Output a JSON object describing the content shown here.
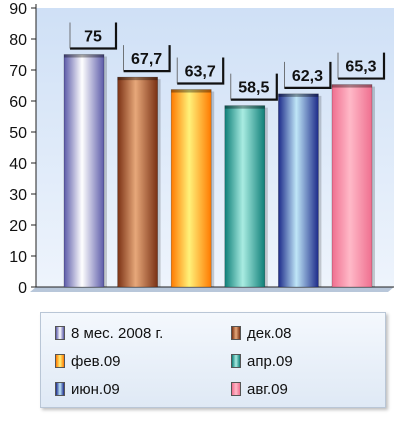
{
  "chart_data": {
    "type": "bar",
    "categories": [
      "8 мес. 2008 г.",
      "дек.08",
      "фев.09",
      "апр.09",
      "июн.09",
      "авг.09"
    ],
    "values": [
      75,
      67.7,
      63.7,
      58.5,
      62.3,
      65.3
    ],
    "data_labels": [
      "75",
      "67,7",
      "63,7",
      "58,5",
      "62,3",
      "65,3"
    ],
    "ylim": [
      0,
      90
    ],
    "yticks": [
      "0",
      "10",
      "20",
      "30",
      "40",
      "50",
      "60",
      "70",
      "80",
      "90"
    ],
    "grid": false,
    "legend_position": "bottom",
    "colors": {
      "8 мес. 2008 г.": [
        "#5b5aa8",
        "#ffffff"
      ],
      "дек.08": [
        "#7a3114",
        "#e7a87a"
      ],
      "фев.09": [
        "#ff7a00",
        "#fff27a"
      ],
      "апр.09": [
        "#0f7f78",
        "#a9ece2"
      ],
      "июн.09": [
        "#1d2b8a",
        "#bfe6f7"
      ],
      "авг.09": [
        "#ef6f8f",
        "#ffb9c8"
      ]
    },
    "background": [
      "#cfe0f6",
      "#eef4fc"
    ]
  },
  "legend": {
    "items": [
      "8 мес. 2008 г.",
      "дек.08",
      "фев.09",
      "апр.09",
      "июн.09",
      "авг.09"
    ]
  }
}
